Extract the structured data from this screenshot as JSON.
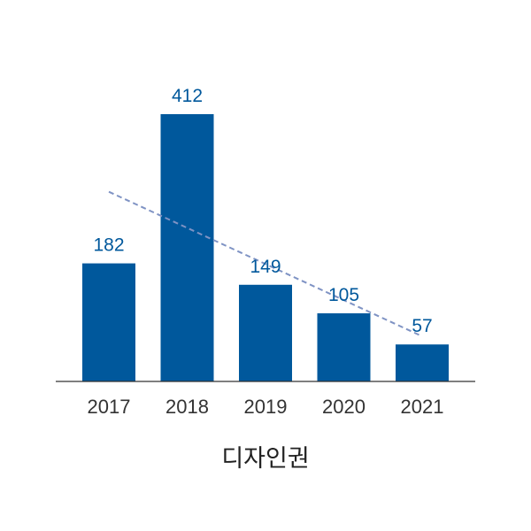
{
  "chart_data": {
    "type": "bar",
    "title": "디자인권",
    "categories": [
      "2017",
      "2018",
      "2019",
      "2020",
      "2021"
    ],
    "values": [
      182,
      412,
      149,
      105,
      57
    ],
    "xlabel": "",
    "ylabel": "",
    "ylim": [
      0,
      412
    ],
    "grid": false,
    "legend": "none",
    "trendline": {
      "type": "linear",
      "style": "dashed"
    },
    "colors": {
      "bar": "#00589c",
      "value_label": "#00589c",
      "trendline": "#7f93c4",
      "axis": "#333333"
    }
  }
}
